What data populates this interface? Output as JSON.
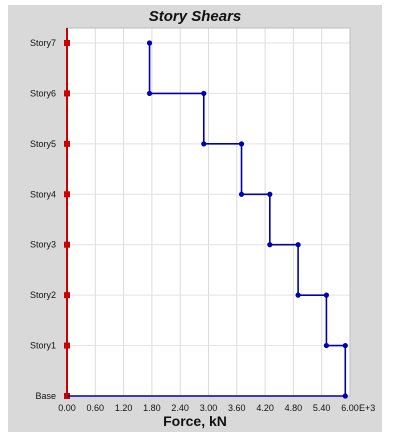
{
  "chart_data": {
    "type": "line",
    "title": "Story Shears",
    "xlabel": "Force, kN",
    "x_multiplier_label": "E+3",
    "xlim": [
      0,
      6.0
    ],
    "x_ticks": [
      "0.00",
      "0.60",
      "1.20",
      "1.80",
      "2.40",
      "3.00",
      "3.60",
      "4.20",
      "4.80",
      "5.40",
      "6.00"
    ],
    "categories": [
      "Base",
      "Story1",
      "Story2",
      "Story3",
      "Story4",
      "Story5",
      "Story6",
      "Story7"
    ],
    "grid": true,
    "series": [
      {
        "color": "#0000b0",
        "points": [
          {
            "x": 1.75,
            "level": "Story7"
          },
          {
            "x": 1.75,
            "level": "Story6"
          },
          {
            "x": 2.9,
            "level": "Story6"
          },
          {
            "x": 2.9,
            "level": "Story5"
          },
          {
            "x": 3.7,
            "level": "Story5"
          },
          {
            "x": 3.7,
            "level": "Story4"
          },
          {
            "x": 4.3,
            "level": "Story4"
          },
          {
            "x": 4.3,
            "level": "Story3"
          },
          {
            "x": 4.9,
            "level": "Story3"
          },
          {
            "x": 4.9,
            "level": "Story2"
          },
          {
            "x": 5.5,
            "level": "Story2"
          },
          {
            "x": 5.5,
            "level": "Story1"
          },
          {
            "x": 5.9,
            "level": "Story1"
          },
          {
            "x": 5.9,
            "level": "Base"
          },
          {
            "x": 0.0,
            "level": "Base"
          }
        ]
      }
    ],
    "axis_color": "#cc0000"
  }
}
